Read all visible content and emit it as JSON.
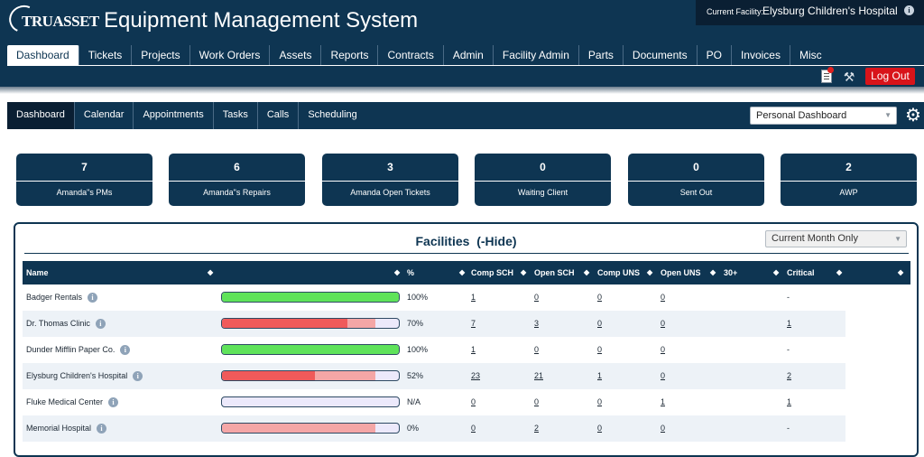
{
  "app": {
    "logo_text": "TRUASSET",
    "title": "Equipment Management System"
  },
  "facility": {
    "label": "Current Facility:",
    "name": "Elysburg Children's Hospital"
  },
  "main_nav": [
    {
      "label": "Dashboard",
      "active": true
    },
    {
      "label": "Tickets"
    },
    {
      "label": "Projects"
    },
    {
      "label": "Work Orders"
    },
    {
      "label": "Assets"
    },
    {
      "label": "Reports"
    },
    {
      "label": "Contracts"
    },
    {
      "label": "Admin"
    },
    {
      "label": "Facility Admin"
    },
    {
      "label": "Parts"
    },
    {
      "label": "Documents"
    },
    {
      "label": "PO"
    },
    {
      "label": "Invoices"
    },
    {
      "label": "Misc"
    }
  ],
  "toolbar": {
    "logout_label": "Log Out",
    "notes_icon": "notepad-icon",
    "tools_icon": "tools-icon",
    "logout_color": "#d8141a"
  },
  "sub_nav": [
    {
      "label": "Dashboard",
      "active": true
    },
    {
      "label": "Calendar"
    },
    {
      "label": "Appointments"
    },
    {
      "label": "Tasks"
    },
    {
      "label": "Calls"
    },
    {
      "label": "Scheduling"
    }
  ],
  "dashboard_select": {
    "value": "Personal Dashboard"
  },
  "tiles": [
    {
      "count": "7",
      "label": "Amanda\"s PMs"
    },
    {
      "count": "6",
      "label": "Amanda\"s Repairs"
    },
    {
      "count": "3",
      "label": "Amanda Open Tickets"
    },
    {
      "count": "0",
      "label": "Waiting Client"
    },
    {
      "count": "0",
      "label": "Sent Out"
    },
    {
      "count": "2",
      "label": "AWP"
    }
  ],
  "facilities": {
    "title": "Facilities",
    "hide_label": "(-Hide)",
    "period_select": "Current Month Only",
    "columns": {
      "name": "Name",
      "pct": "%",
      "comp_sch": "Comp SCH",
      "open_sch": "Open SCH",
      "comp_uns": "Comp UNS",
      "open_uns": "Open UNS",
      "over30": "30+",
      "critical": "Critical"
    },
    "rows": [
      {
        "name": "Badger Rentals",
        "pct": "100%",
        "progress": 1.0,
        "secondary": 0,
        "bar_color": "#5fe35a",
        "comp_sch": "1",
        "open_sch": "0",
        "comp_uns": "0",
        "open_uns": "0",
        "critical": "-"
      },
      {
        "name": "Dr. Thomas Clinic",
        "pct": "70%",
        "progress": 0.7,
        "secondary": 0.86,
        "bar_color": "#f05a5a",
        "comp_sch": "7",
        "open_sch": "3",
        "comp_uns": "0",
        "open_uns": "0",
        "critical": "1"
      },
      {
        "name": "Dunder Mifflin Paper Co.",
        "pct": "100%",
        "progress": 1.0,
        "secondary": 0,
        "bar_color": "#5fe35a",
        "comp_sch": "1",
        "open_sch": "0",
        "comp_uns": "0",
        "open_uns": "0",
        "critical": "-"
      },
      {
        "name": "Elysburg Children's Hospital",
        "pct": "52%",
        "progress": 0.52,
        "secondary": 0.86,
        "bar_color": "#f05a5a",
        "comp_sch": "23",
        "open_sch": "21",
        "comp_uns": "1",
        "open_uns": "0",
        "critical": "2"
      },
      {
        "name": "Fluke Medical Center",
        "pct": "N/A",
        "progress": 0,
        "secondary": 0,
        "bar_color": "#ece9fb",
        "comp_sch": "0",
        "open_sch": "0",
        "comp_uns": "0",
        "open_uns": "1",
        "critical": "1"
      },
      {
        "name": "Memorial Hospital",
        "pct": "0%",
        "progress": 0,
        "secondary": 0.86,
        "bar_color": "#f05a5a",
        "comp_sch": "0",
        "open_sch": "2",
        "comp_uns": "0",
        "open_uns": "0",
        "critical": "-"
      }
    ]
  }
}
